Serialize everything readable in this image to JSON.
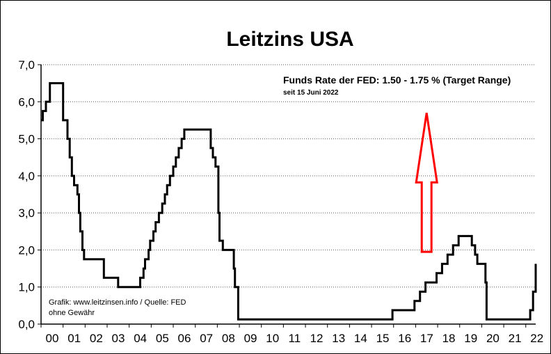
{
  "chart_data": {
    "type": "line",
    "title": "Leitzins USA",
    "xlabel": "",
    "ylabel": "",
    "ylim": [
      0,
      7
    ],
    "xlim": [
      2000.0,
      2022.45
    ],
    "y_ticks": [
      {
        "value": 0,
        "label": "0,0"
      },
      {
        "value": 1,
        "label": "1,0"
      },
      {
        "value": 2,
        "label": "2,0"
      },
      {
        "value": 3,
        "label": "3,0"
      },
      {
        "value": 4,
        "label": "4,0"
      },
      {
        "value": 5,
        "label": "5,0"
      },
      {
        "value": 6,
        "label": "6,0"
      },
      {
        "value": 7,
        "label": "7,0"
      }
    ],
    "x_ticks": [
      {
        "value": 2000,
        "label": "00"
      },
      {
        "value": 2001,
        "label": "01"
      },
      {
        "value": 2002,
        "label": "02"
      },
      {
        "value": 2003,
        "label": "03"
      },
      {
        "value": 2004,
        "label": "04"
      },
      {
        "value": 2005,
        "label": "05"
      },
      {
        "value": 2006,
        "label": "06"
      },
      {
        "value": 2007,
        "label": "07"
      },
      {
        "value": 2008,
        "label": "08"
      },
      {
        "value": 2009,
        "label": "09"
      },
      {
        "value": 2010,
        "label": "10"
      },
      {
        "value": 2011,
        "label": "11"
      },
      {
        "value": 2012,
        "label": "12"
      },
      {
        "value": 2013,
        "label": "13"
      },
      {
        "value": 2014,
        "label": "14"
      },
      {
        "value": 2015,
        "label": "15"
      },
      {
        "value": 2016,
        "label": "16"
      },
      {
        "value": 2017,
        "label": "17"
      },
      {
        "value": 2018,
        "label": "18"
      },
      {
        "value": 2019,
        "label": "19"
      },
      {
        "value": 2020,
        "label": "20"
      },
      {
        "value": 2021,
        "label": "21"
      },
      {
        "value": 2022,
        "label": "22"
      }
    ],
    "grid": {
      "horizontal": true,
      "style": "dotted"
    },
    "series": [
      {
        "name": "Leitzins USA",
        "color": "#000000",
        "step": true,
        "points": [
          [
            2000.0,
            5.5
          ],
          [
            2000.08,
            5.75
          ],
          [
            2000.22,
            6.0
          ],
          [
            2000.4,
            6.5
          ],
          [
            2001.0,
            5.5
          ],
          [
            2001.2,
            5.0
          ],
          [
            2001.3,
            4.5
          ],
          [
            2001.4,
            4.0
          ],
          [
            2001.5,
            3.75
          ],
          [
            2001.65,
            3.5
          ],
          [
            2001.72,
            3.0
          ],
          [
            2001.78,
            2.5
          ],
          [
            2001.88,
            2.0
          ],
          [
            2001.95,
            1.75
          ],
          [
            2002.85,
            1.25
          ],
          [
            2003.5,
            1.0
          ],
          [
            2004.5,
            1.25
          ],
          [
            2004.65,
            1.5
          ],
          [
            2004.72,
            1.75
          ],
          [
            2004.88,
            2.0
          ],
          [
            2004.95,
            2.25
          ],
          [
            2005.1,
            2.5
          ],
          [
            2005.2,
            2.75
          ],
          [
            2005.35,
            3.0
          ],
          [
            2005.5,
            3.25
          ],
          [
            2005.62,
            3.5
          ],
          [
            2005.72,
            3.75
          ],
          [
            2005.85,
            4.0
          ],
          [
            2006.0,
            4.25
          ],
          [
            2006.12,
            4.5
          ],
          [
            2006.25,
            4.75
          ],
          [
            2006.38,
            5.0
          ],
          [
            2006.5,
            5.25
          ],
          [
            2007.7,
            4.75
          ],
          [
            2007.8,
            4.5
          ],
          [
            2007.92,
            4.25
          ],
          [
            2008.05,
            3.0
          ],
          [
            2008.1,
            2.25
          ],
          [
            2008.25,
            2.0
          ],
          [
            2008.75,
            1.5
          ],
          [
            2008.8,
            1.0
          ],
          [
            2008.95,
            0.125
          ],
          [
            2015.95,
            0.375
          ],
          [
            2016.95,
            0.625
          ],
          [
            2017.2,
            0.875
          ],
          [
            2017.45,
            1.125
          ],
          [
            2017.95,
            1.375
          ],
          [
            2018.2,
            1.625
          ],
          [
            2018.45,
            1.875
          ],
          [
            2018.7,
            2.125
          ],
          [
            2018.95,
            2.375
          ],
          [
            2019.55,
            2.125
          ],
          [
            2019.7,
            1.875
          ],
          [
            2019.8,
            1.625
          ],
          [
            2020.17,
            1.125
          ],
          [
            2020.22,
            0.125
          ],
          [
            2022.2,
            0.375
          ],
          [
            2022.33,
            0.875
          ],
          [
            2022.45,
            1.625
          ]
        ]
      }
    ],
    "annotations": {
      "funds_rate": "Funds Rate der FED: 1.50 - 1.75 % (Target Range)",
      "since": "seit 15 Juni 2022",
      "source_line1": "Grafik: www.leitzinsen.info / Quelle: FED",
      "source_line2": "ohne Gewähr"
    },
    "arrow": {
      "direction": "up",
      "color": "#ff0000",
      "x_from": 2017.5,
      "y_from": 1.95,
      "x_to": 2017.5,
      "y_to": 5.7
    }
  }
}
